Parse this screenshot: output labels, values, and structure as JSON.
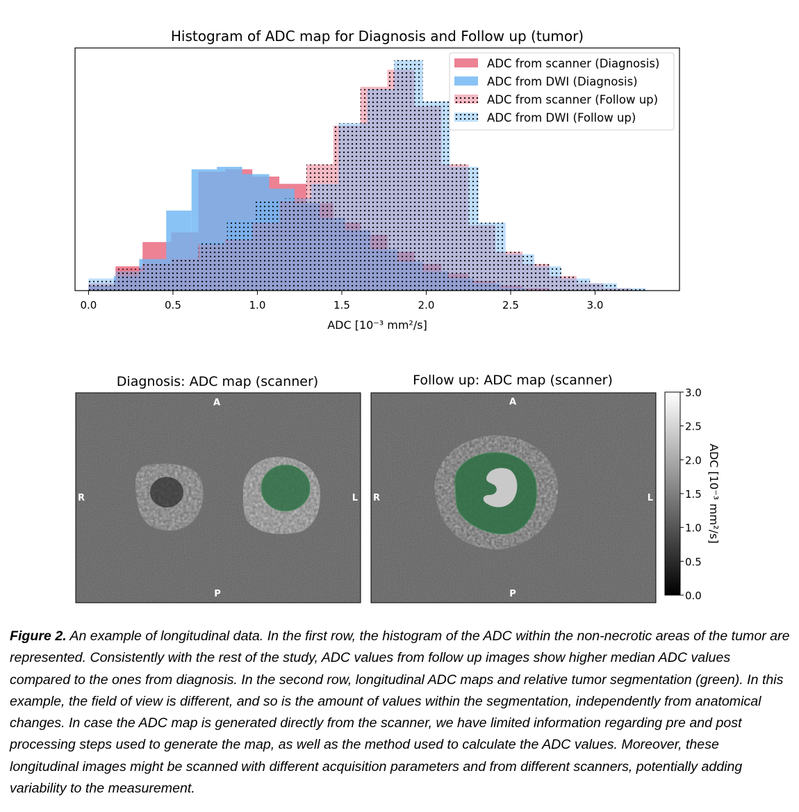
{
  "chart_data": {
    "type": "histogram",
    "title": "Histogram of ADC map for Diagnosis and Follow up (tumor)",
    "xlabel": "ADC  [10⁻³ mm²/s]",
    "ylabel": "",
    "xlim": [
      -0.08,
      3.5
    ],
    "ylim": [
      0,
      1.0
    ],
    "xticks": [
      "0.0",
      "0.5",
      "1.0",
      "1.5",
      "2.0",
      "2.5",
      "3.0"
    ],
    "xtick_values": [
      0.0,
      0.5,
      1.0,
      1.5,
      2.0,
      2.5,
      3.0
    ],
    "yticks_shown": false,
    "legend_position": "top-right",
    "series": [
      {
        "name": "ADC from scanner (Diagnosis)",
        "style": "filled",
        "color": "#e8677d",
        "bins": [
          [
            0.0,
            0.16
          ],
          [
            0.16,
            0.32
          ],
          [
            0.32,
            0.49
          ],
          [
            0.49,
            0.65
          ],
          [
            0.65,
            0.81
          ],
          [
            0.81,
            0.97
          ],
          [
            0.97,
            1.13
          ],
          [
            1.13,
            1.29
          ],
          [
            1.29,
            1.45
          ],
          [
            1.45,
            1.61
          ],
          [
            1.61,
            1.77
          ],
          [
            1.77,
            1.93
          ],
          [
            1.93,
            2.09
          ],
          [
            2.09,
            2.25
          ],
          [
            2.25,
            2.41
          ],
          [
            2.41,
            2.57
          ],
          [
            2.57,
            2.73
          ]
        ],
        "values": [
          0.02,
          0.1,
          0.2,
          0.24,
          0.49,
          0.5,
          0.47,
          0.44,
          0.36,
          0.28,
          0.23,
          0.16,
          0.11,
          0.07,
          0.04,
          0.02,
          0.01
        ]
      },
      {
        "name": "ADC from DWI (Diagnosis)",
        "style": "filled",
        "color": "#6fb6f3",
        "bins": [
          [
            0.0,
            0.15
          ],
          [
            0.15,
            0.3
          ],
          [
            0.3,
            0.46
          ],
          [
            0.46,
            0.61
          ],
          [
            0.61,
            0.76
          ],
          [
            0.76,
            0.91
          ],
          [
            0.91,
            1.07
          ],
          [
            1.07,
            1.22
          ],
          [
            1.22,
            1.37
          ],
          [
            1.37,
            1.52
          ],
          [
            1.52,
            1.67
          ],
          [
            1.67,
            1.83
          ],
          [
            1.83,
            1.98
          ],
          [
            1.98,
            2.13
          ],
          [
            2.13,
            2.28
          ],
          [
            2.28,
            2.44
          ],
          [
            2.44,
            2.59
          ]
        ],
        "values": [
          0.02,
          0.06,
          0.13,
          0.33,
          0.5,
          0.51,
          0.48,
          0.42,
          0.36,
          0.3,
          0.25,
          0.17,
          0.12,
          0.08,
          0.05,
          0.03,
          0.01
        ]
      },
      {
        "name": "ADC from scanner (Follow up)",
        "style": "dotted",
        "color": "#e8677d",
        "bins": [
          [
            0.0,
            0.16
          ],
          [
            0.16,
            0.32
          ],
          [
            0.32,
            0.49
          ],
          [
            0.49,
            0.65
          ],
          [
            0.65,
            0.81
          ],
          [
            0.81,
            0.97
          ],
          [
            0.97,
            1.13
          ],
          [
            1.13,
            1.29
          ],
          [
            1.29,
            1.45
          ],
          [
            1.45,
            1.61
          ],
          [
            1.61,
            1.77
          ],
          [
            1.77,
            1.93
          ],
          [
            1.93,
            2.09
          ],
          [
            2.09,
            2.25
          ],
          [
            2.25,
            2.41
          ],
          [
            2.41,
            2.57
          ],
          [
            2.57,
            2.73
          ],
          [
            2.73,
            2.89
          ],
          [
            2.89,
            3.05
          ],
          [
            3.05,
            3.21
          ]
        ],
        "values": [
          0.03,
          0.09,
          0.11,
          0.13,
          0.19,
          0.21,
          0.28,
          0.37,
          0.52,
          0.68,
          0.84,
          0.91,
          0.76,
          0.52,
          0.27,
          0.16,
          0.11,
          0.06,
          0.03,
          0.01
        ]
      },
      {
        "name": "ADC from DWI (Follow up)",
        "style": "dotted",
        "color": "#6fb6f3",
        "bins": [
          [
            0.0,
            0.16
          ],
          [
            0.16,
            0.33
          ],
          [
            0.33,
            0.49
          ],
          [
            0.49,
            0.66
          ],
          [
            0.66,
            0.82
          ],
          [
            0.82,
            0.99
          ],
          [
            0.99,
            1.15
          ],
          [
            1.15,
            1.32
          ],
          [
            1.32,
            1.48
          ],
          [
            1.48,
            1.65
          ],
          [
            1.65,
            1.81
          ],
          [
            1.81,
            1.98
          ],
          [
            1.98,
            2.14
          ],
          [
            2.14,
            2.31
          ],
          [
            2.31,
            2.47
          ],
          [
            2.47,
            2.64
          ],
          [
            2.64,
            2.8
          ],
          [
            2.8,
            2.97
          ],
          [
            2.97,
            3.13
          ],
          [
            3.13,
            3.3
          ]
        ],
        "values": [
          0.05,
          0.08,
          0.11,
          0.13,
          0.2,
          0.29,
          0.37,
          0.38,
          0.44,
          0.69,
          0.83,
          0.95,
          0.78,
          0.51,
          0.28,
          0.15,
          0.1,
          0.05,
          0.03,
          0.01
        ]
      }
    ]
  },
  "maps": {
    "left": {
      "title": "Diagnosis: ADC map (scanner)",
      "top": "A",
      "bottom": "P",
      "left": "R",
      "right": "L"
    },
    "right": {
      "title": "Follow up: ADC map (scanner)",
      "top": "A",
      "bottom": "P",
      "left": "R",
      "right": "L"
    }
  },
  "colorbar": {
    "label": "ADC  [10⁻³ mm²/s]",
    "range": [
      0.0,
      3.0
    ],
    "ticks": [
      "0.0",
      "0.5",
      "1.0",
      "1.5",
      "2.0",
      "2.5",
      "3.0"
    ],
    "tick_values": [
      0.0,
      0.5,
      1.0,
      1.5,
      2.0,
      2.5,
      3.0
    ]
  },
  "caption": {
    "label": "Figure 2.",
    "text": " An example of longitudinal data. In the first row, the histogram of the ADC within the non-necrotic areas of the tumor are represented. Consistently with the rest of the study, ADC values from follow up images show higher median ADC values compared to the ones from diagnosis. In the second row, longitudinal ADC maps and relative tumor segmentation (green). In this example, the field of view is different, and so is the amount of values within the segmentation, independently from anatomical changes. In case the ADC map is generated directly from the scanner, we have limited information regarding pre and post processing steps used to generate the map, as well as the method used to calculate the ADC values. Moreover, these longitudinal images might be scanned with different acquisition parameters and from different scanners, potentially adding variability to the measurement."
  }
}
